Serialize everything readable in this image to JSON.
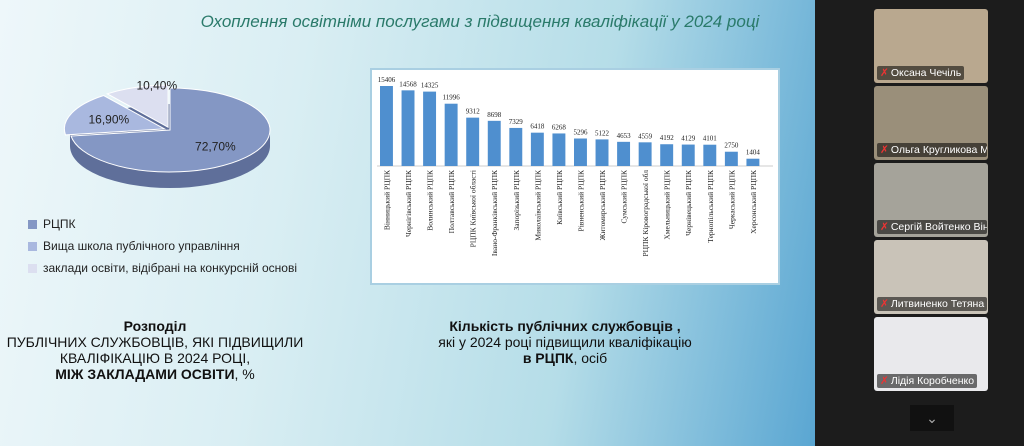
{
  "slide": {
    "title": "Охоплення освітніми послугами з підвищення кваліфікації у 2024 році",
    "pie_caption": {
      "l1": "Розподіл",
      "l2": "ПУБЛІЧНИХ СЛУЖБОВЦІВ, ЯКІ ПІДВИЩИЛИ",
      "l3": "КВАЛІФІКАЦІЮ В 2024 РОЦІ,",
      "l4": "МІЖ ЗАКЛАДАМИ ОСВІТИ",
      "l4b": ", %"
    },
    "bar_caption": {
      "l1": "Кількість публічних службовців ,",
      "l2": "які у 2024 році підвищили кваліфікацію",
      "l3": "в РЦПК",
      "l3b": ", осіб"
    }
  },
  "chart_data": [
    {
      "type": "pie",
      "slices": [
        {
          "label": "РЦПК",
          "value": 72.7,
          "text": "72,70%",
          "color": "#8497c4"
        },
        {
          "label": "Вища школа публічного управління",
          "value": 16.9,
          "text": "16,90%",
          "color": "#a9b8df"
        },
        {
          "label": "заклади освіти, відібрані на конкурсній основі",
          "value": 10.4,
          "text": "10,40%",
          "color": "#dcdff0"
        }
      ],
      "legend": "bottom"
    },
    {
      "type": "bar",
      "color": "#4f8fcf",
      "categories": [
        "Вінницький РЦПК",
        "Чернігівський РЦПК",
        "Волинський РЦПК",
        "Полтавський РЦПК",
        "РЦПК Київської області",
        "Івано-Франківський РЦПК",
        "Запорізький РЦПК",
        "Миколаївський РЦПК",
        "Київський РЦПК",
        "Рівненський РЦПК",
        "Житомирський РЦПК",
        "Сумський РЦПК",
        "РЦПК Кіровоградської обл",
        "Хмельницький РЦПК",
        "Чернівецький РЦПК",
        "Тернопільський РЦПК",
        "Черкаський РЦПК",
        "Херсонський РЦПК"
      ],
      "values": [
        15406,
        14568,
        14325,
        11996,
        9312,
        8698,
        7329,
        6418,
        6268,
        5296,
        5122,
        4653,
        4559,
        4192,
        4129,
        4101,
        2750,
        1404
      ]
    }
  ],
  "participants": [
    {
      "name": "Оксана Чечіль"
    },
    {
      "name": "Ольга Кругликова  М..."
    },
    {
      "name": "Сергій Войтенко Вінн..."
    },
    {
      "name": "Литвиненко Тетяна"
    },
    {
      "name": "Лідія Коробченко"
    }
  ],
  "more_icon": "chevron-down-icon"
}
